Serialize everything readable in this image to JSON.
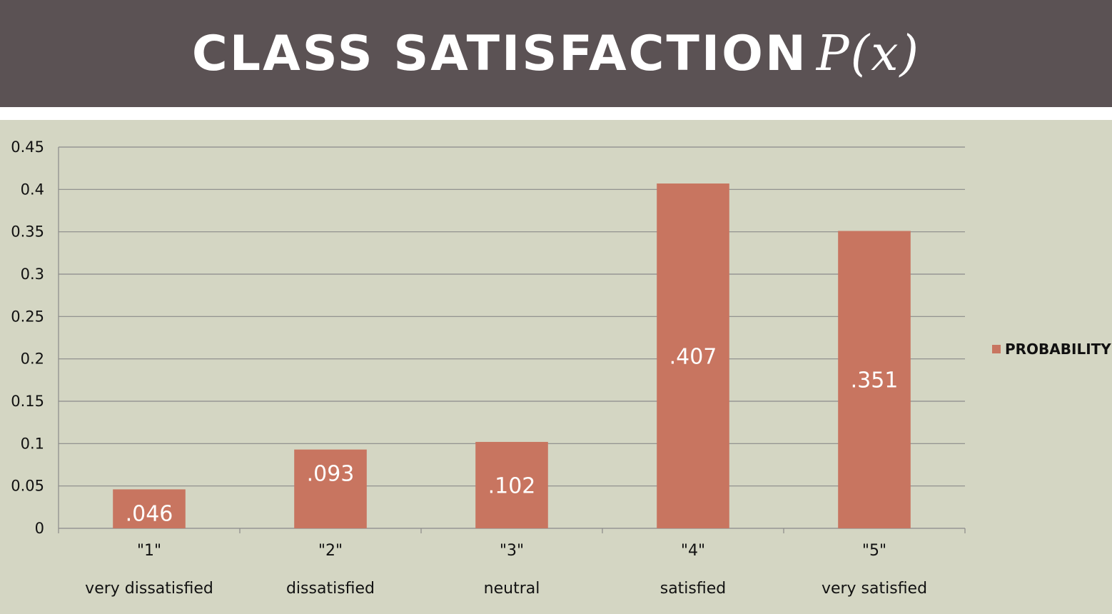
{
  "header": {
    "title": "CLASS SATISFACTION",
    "title_math": "P(x)"
  },
  "colors": {
    "header_bg": "#5b5254",
    "chart_bg": "#d4d6c3",
    "bar": "#c87560",
    "gridline": "#8a8a8a"
  },
  "chart_data": {
    "type": "bar",
    "categories": [
      "\"1\"",
      "\"2\"",
      "\"3\"",
      "\"4\"",
      "\"5\""
    ],
    "category_sublabels": [
      "very dissatisfied",
      "dissatisfied",
      "neutral",
      "satisfied",
      "very satisfied"
    ],
    "series": [
      {
        "name": "PROBABILITY",
        "values": [
          0.046,
          0.093,
          0.102,
          0.407,
          0.351
        ],
        "data_labels": [
          ".046",
          ".093",
          ".102",
          ".407",
          ".351"
        ]
      }
    ],
    "title": "",
    "xlabel": "",
    "ylabel": "",
    "ylim": [
      0,
      0.45
    ],
    "yticks": [
      0,
      0.05,
      0.1,
      0.15,
      0.2,
      0.25,
      0.3,
      0.35,
      0.4,
      0.45
    ],
    "ytick_labels": [
      "0",
      "0.05",
      "0.1",
      "0.15",
      "0.2",
      "0.25",
      "0.3",
      "0.35",
      "0.4",
      "0.45"
    ],
    "grid": true,
    "legend_position": "right"
  }
}
